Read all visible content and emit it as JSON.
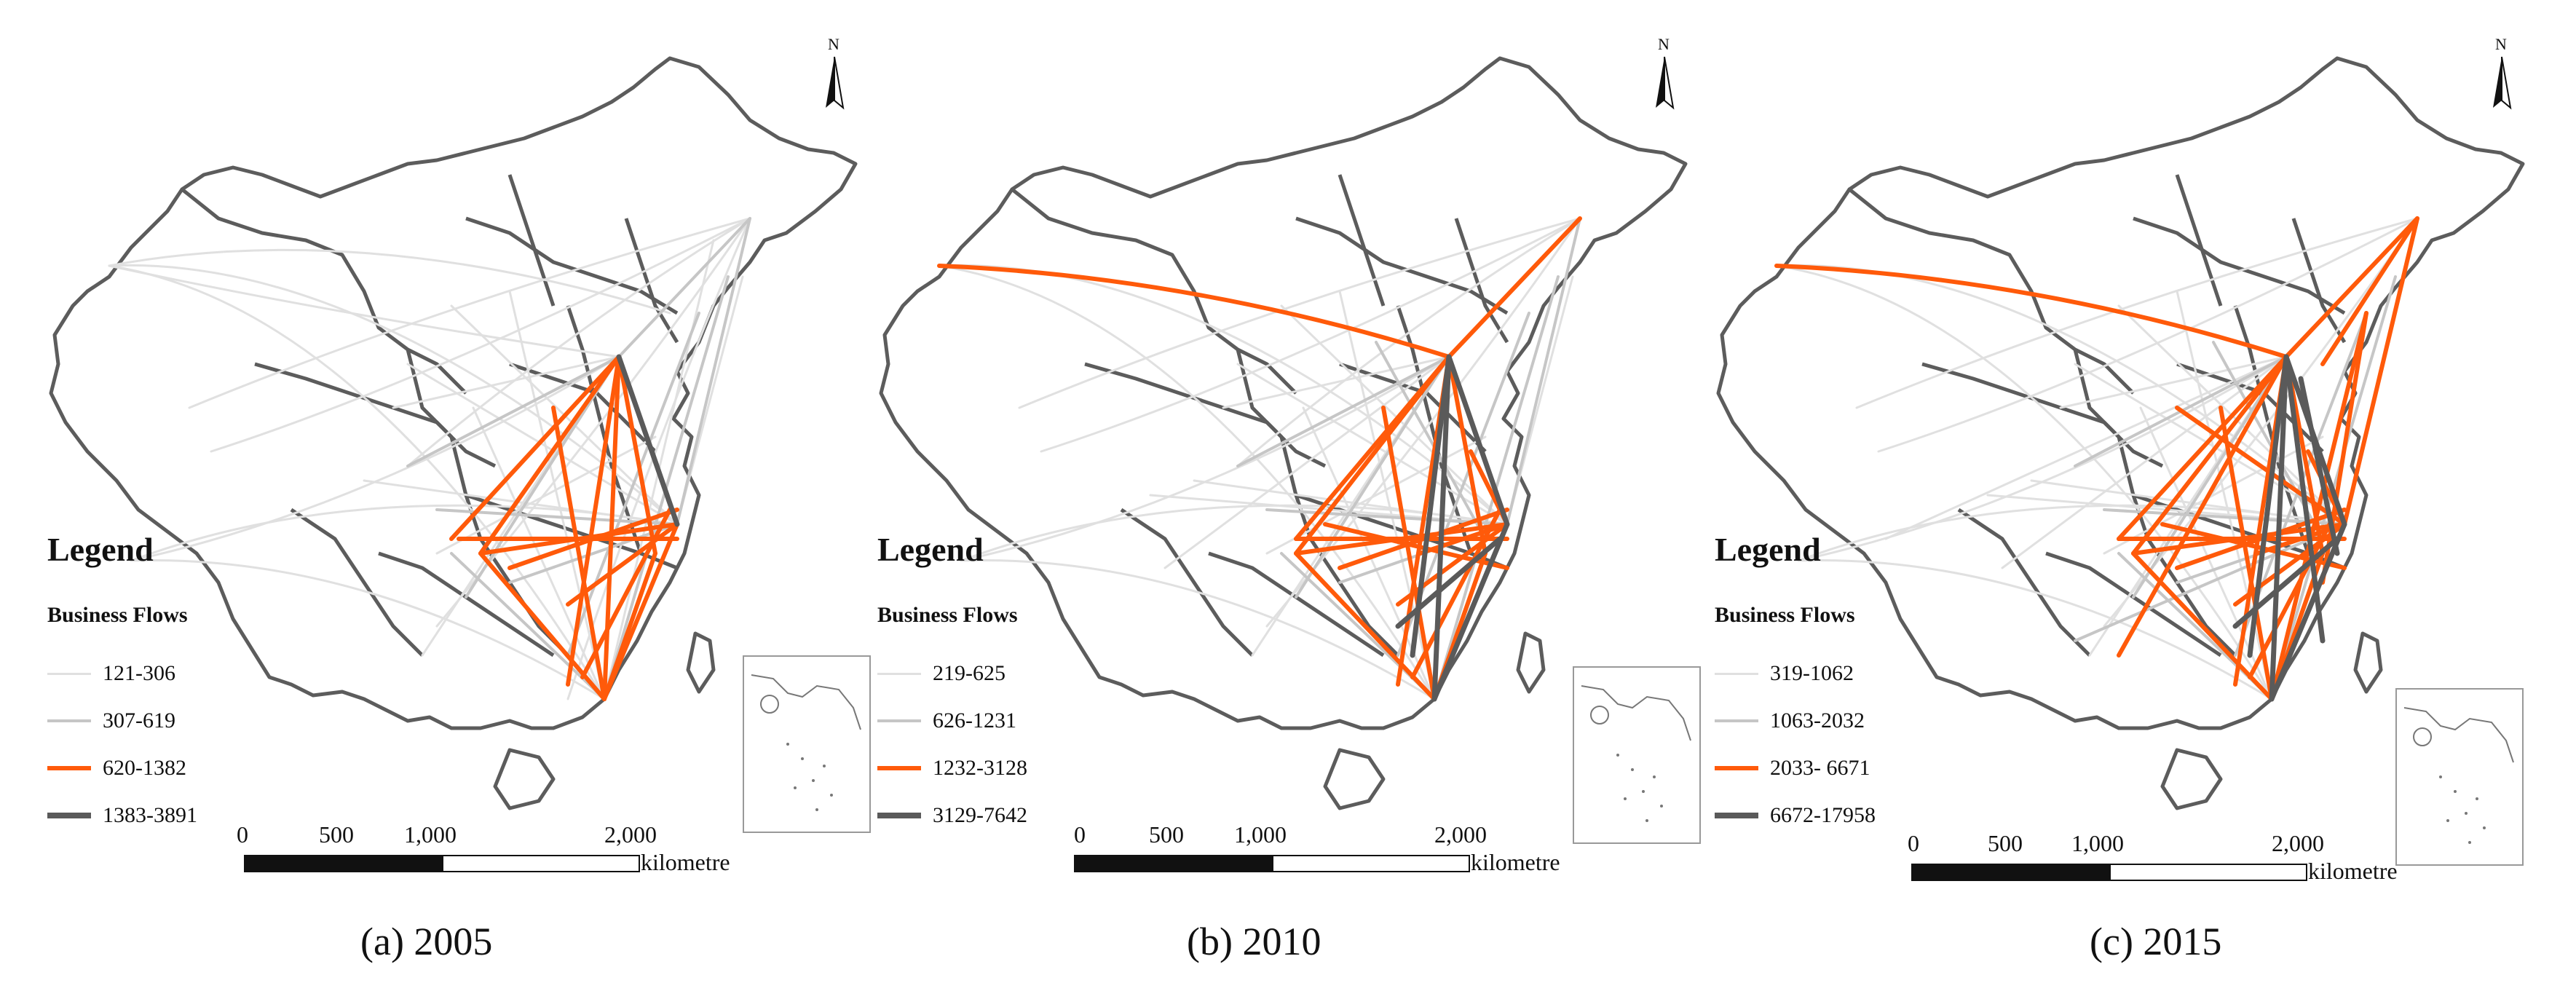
{
  "panels": [
    {
      "caption": "(a)  2005",
      "legend_title": "Legend",
      "legend_subtitle": "Business Flows",
      "classes": [
        {
          "range": "121-306",
          "color": "#e0e0e0"
        },
        {
          "range": "307-619",
          "color": "#c6c6c6"
        },
        {
          "range": "620-1382",
          "color": "#ff5a0a"
        },
        {
          "range": "1383-3891",
          "color": "#5a5a5a"
        }
      ],
      "north_label": "N",
      "scale_ticks": [
        "0",
        "500",
        "1,000",
        "2,000"
      ],
      "scale_unit": "kilometre"
    },
    {
      "caption": "(b)  2010",
      "legend_title": "Legend",
      "legend_subtitle": "Business Flows",
      "classes": [
        {
          "range": "219-625",
          "color": "#e0e0e0"
        },
        {
          "range": "626-1231",
          "color": "#c6c6c6"
        },
        {
          "range": "1232-3128",
          "color": "#ff5a0a"
        },
        {
          "range": "3129-7642",
          "color": "#5a5a5a"
        }
      ],
      "north_label": "N",
      "scale_ticks": [
        "0",
        "500",
        "1,000",
        "2,000"
      ],
      "scale_unit": "kilometre"
    },
    {
      "caption": "(c)  2015",
      "legend_title": "Legend",
      "legend_subtitle": "Business Flows",
      "classes": [
        {
          "range": "319-1062",
          "color": "#e0e0e0"
        },
        {
          "range": "1063-2032",
          "color": "#c6c6c6"
        },
        {
          "range": "2033- 6671",
          "color": "#ff5a0a"
        },
        {
          "range": "6672-17958",
          "color": "#5a5a5a"
        }
      ],
      "north_label": "N",
      "scale_ticks": [
        "0",
        "500",
        "1,000",
        "2,000"
      ],
      "scale_unit": "kilometre"
    }
  ],
  "colors": {
    "boundary": "#5c5c5c",
    "flow_low": "#e0e0e0",
    "flow_mid": "#c6c6c6",
    "flow_high": "#ff5a0a",
    "flow_top": "#5a5a5a"
  }
}
